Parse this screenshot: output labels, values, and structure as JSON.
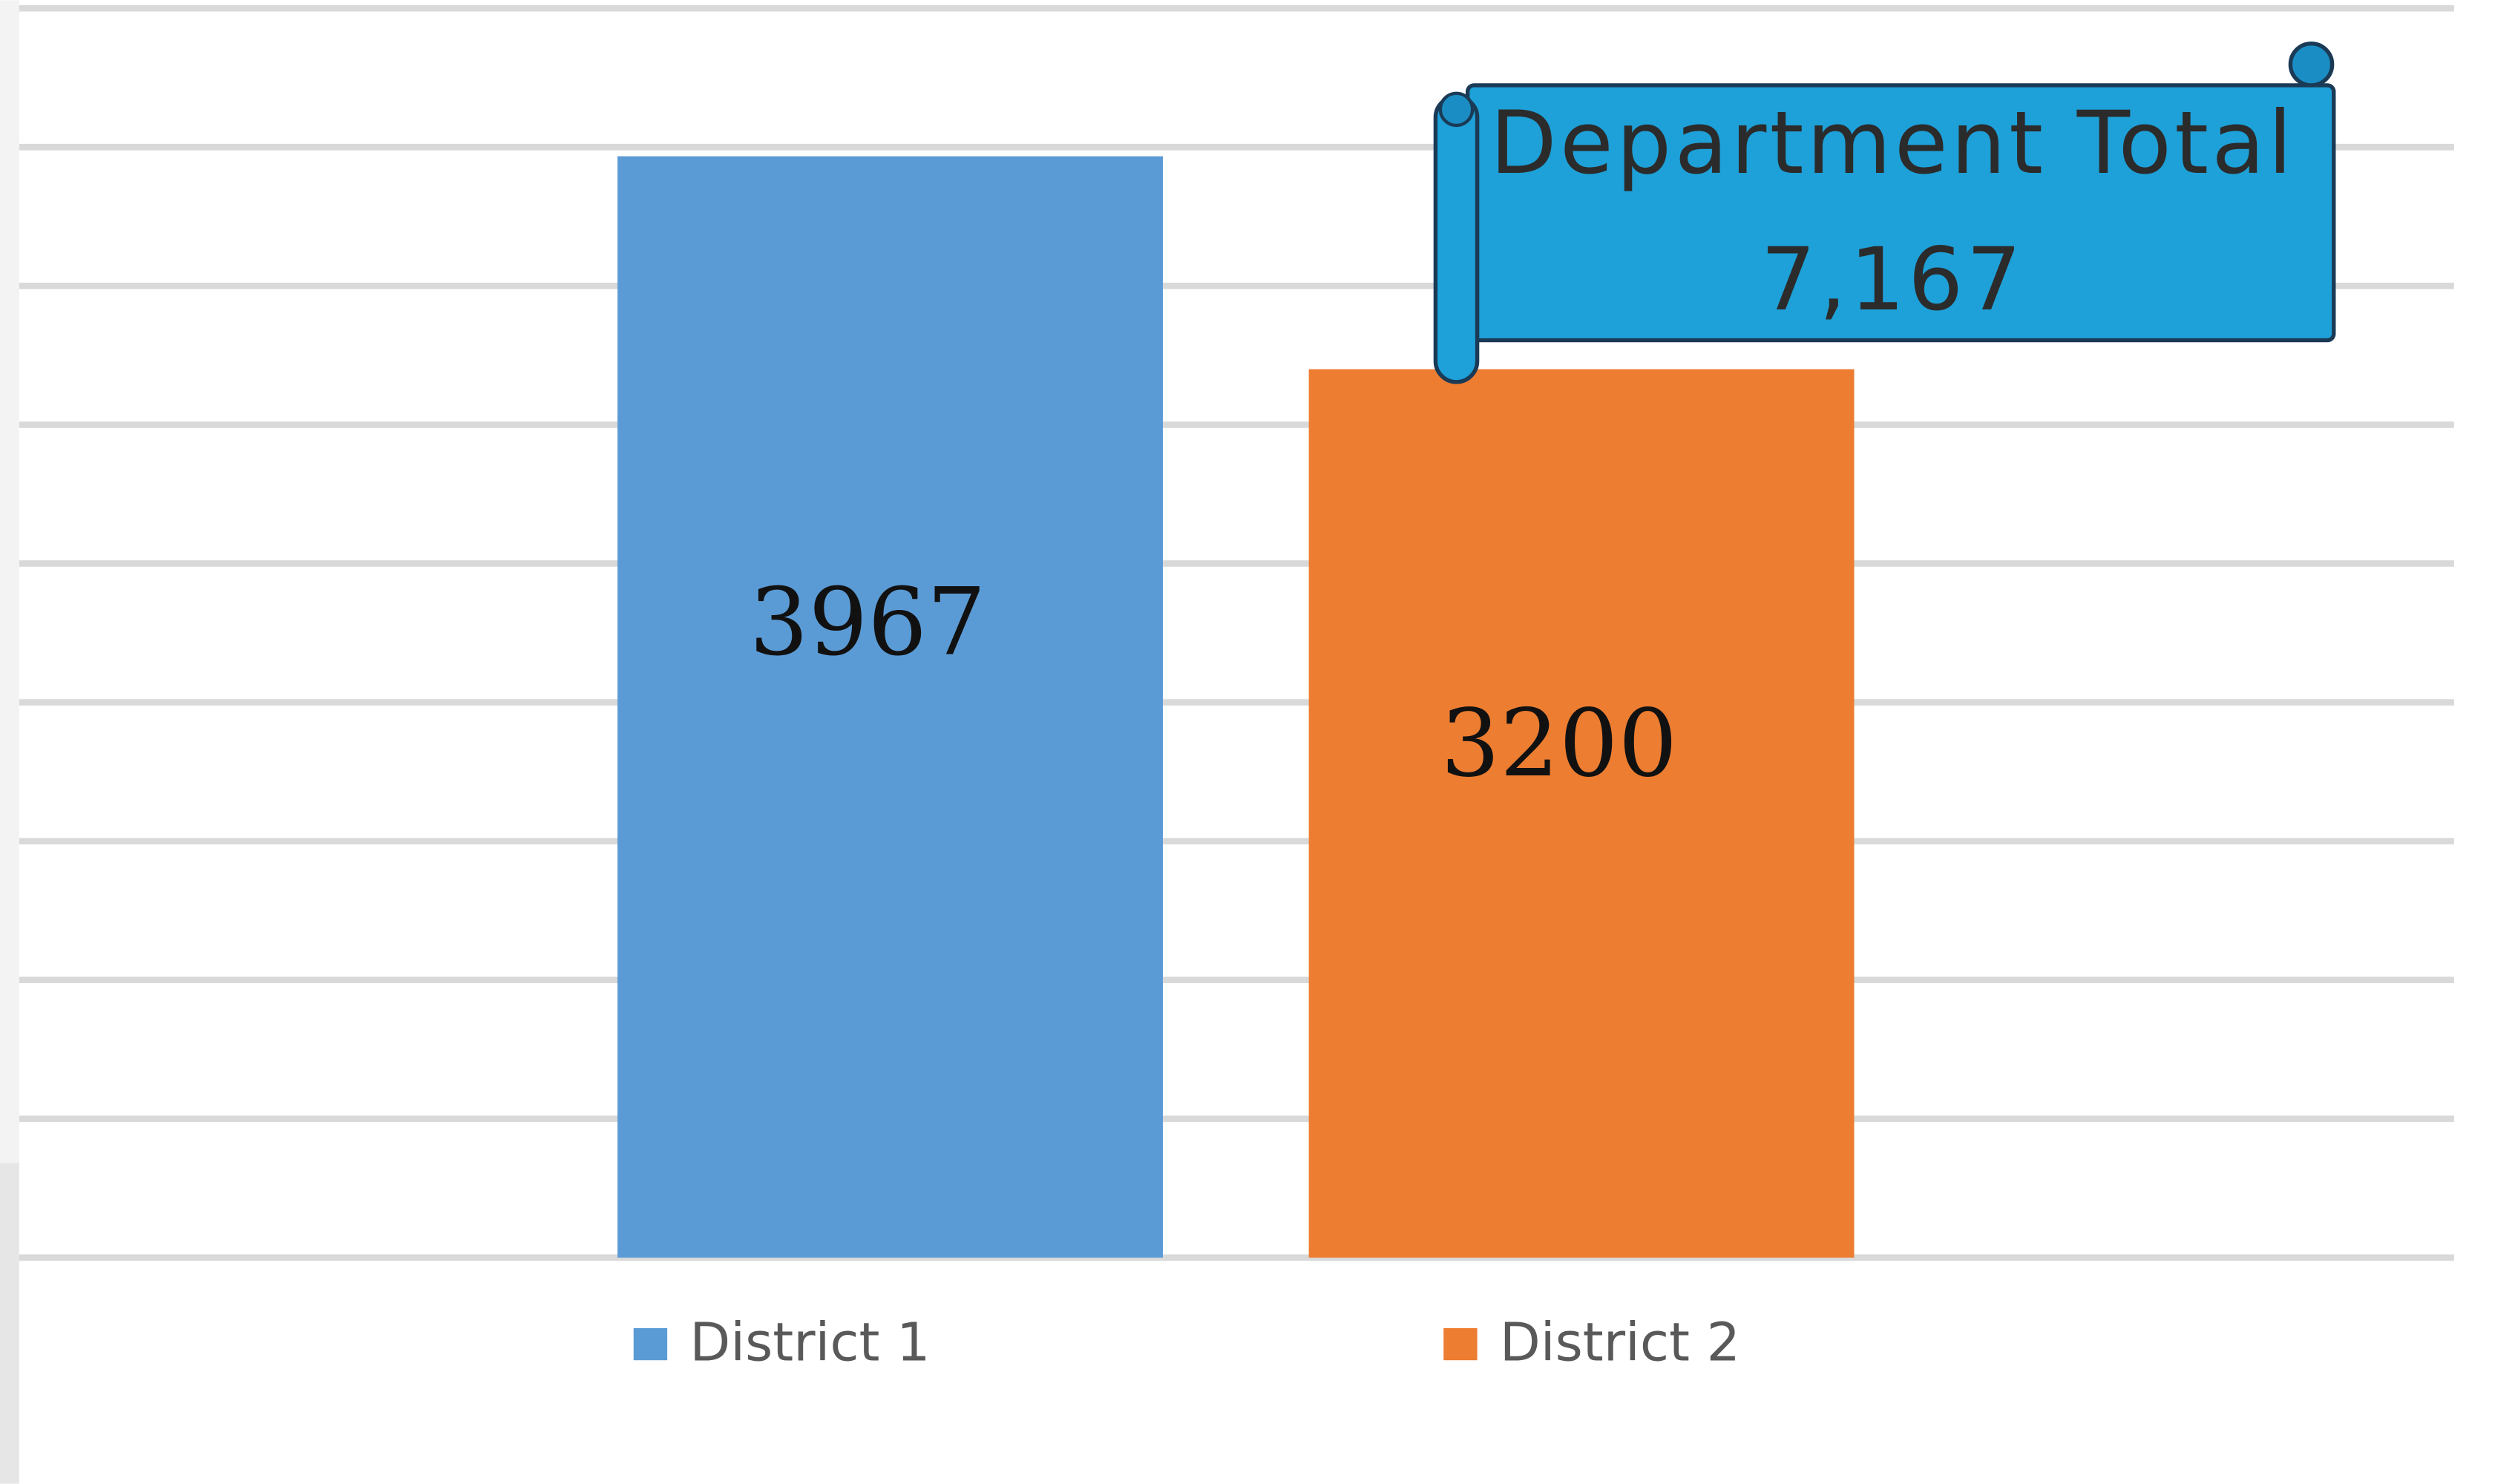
{
  "chart_data": {
    "type": "bar",
    "categories": [
      "District 1",
      "District 2"
    ],
    "values": [
      3967,
      3200
    ],
    "colors": [
      "#5b9bd5",
      "#ed7d31"
    ],
    "ylim": [
      0,
      4500
    ],
    "yticks": [
      0,
      500,
      1000,
      1500,
      2000,
      2500,
      3000,
      3500,
      4000,
      4500
    ],
    "grid": true,
    "annotations": [
      "Department Total",
      "7,167"
    ]
  }
}
